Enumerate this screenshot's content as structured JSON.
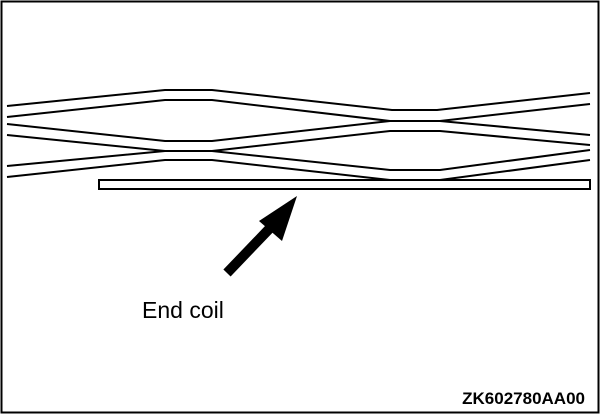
{
  "diagram": {
    "callout_label": "End coil",
    "figure_code": "ZK602780AA00"
  },
  "colors": {
    "line": "#000000",
    "background": "#ffffff"
  }
}
